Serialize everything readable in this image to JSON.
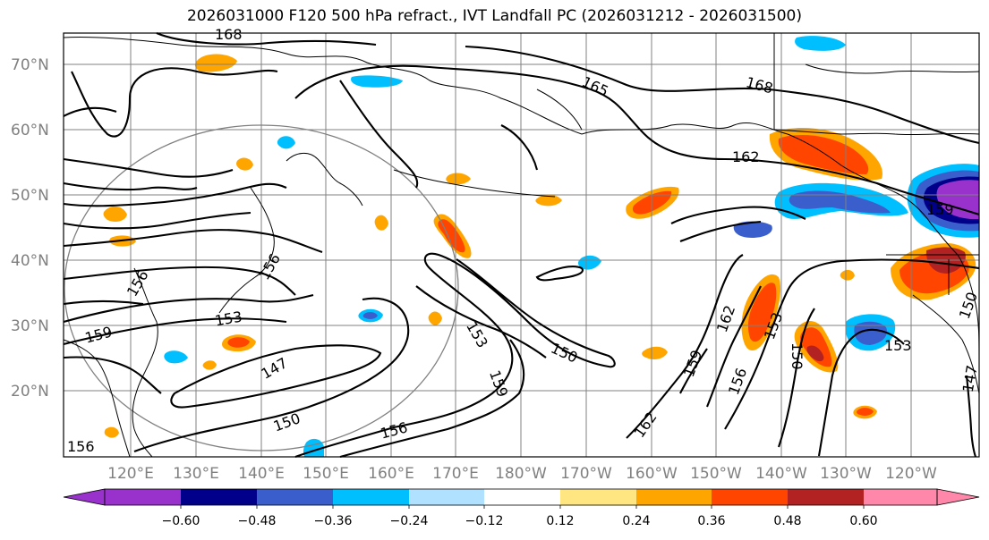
{
  "title": "2026031000 F120 500 hPa refract., IVT Landfall PC (2026031212 - 2026031500)",
  "lat_labels": [
    "70°N",
    "60°N",
    "50°N",
    "40°N",
    "30°N",
    "20°N"
  ],
  "lon_labels": [
    "120°E",
    "130°E",
    "140°E",
    "150°E",
    "160°E",
    "170°E",
    "180°W",
    "170°W",
    "160°W",
    "150°W",
    "140°W",
    "130°W",
    "120°W"
  ],
  "contour_labels": [
    "168",
    "165",
    "168",
    "162",
    "156",
    "156",
    "159",
    "153",
    "147",
    "150",
    "156",
    "153",
    "150",
    "159",
    "162",
    "159",
    "156",
    "153",
    "150",
    "153",
    "150",
    "147",
    "156",
    "159",
    "162"
  ],
  "colorbar": {
    "ticks": [
      "−0.60",
      "−0.48",
      "−0.36",
      "−0.24",
      "−0.12",
      "0.12",
      "0.24",
      "0.36",
      "0.48",
      "0.60"
    ],
    "colors": [
      "#9932cc",
      "#00008b",
      "#3a5fcd",
      "#00bfff",
      "#b0e2ff",
      "#ffffff",
      "#ffe680",
      "#ffa500",
      "#ff4500",
      "#b22222",
      "#ff88aa"
    ]
  },
  "fill_colors": {
    "yellow": "#ffe680",
    "orange": "#ffa500",
    "red": "#ff4500",
    "darkred": "#b22222",
    "lightblue": "#b0e2ff",
    "blue": "#00bfff",
    "royal": "#3a5fcd",
    "navy": "#00008b",
    "purple": "#9932cc"
  }
}
